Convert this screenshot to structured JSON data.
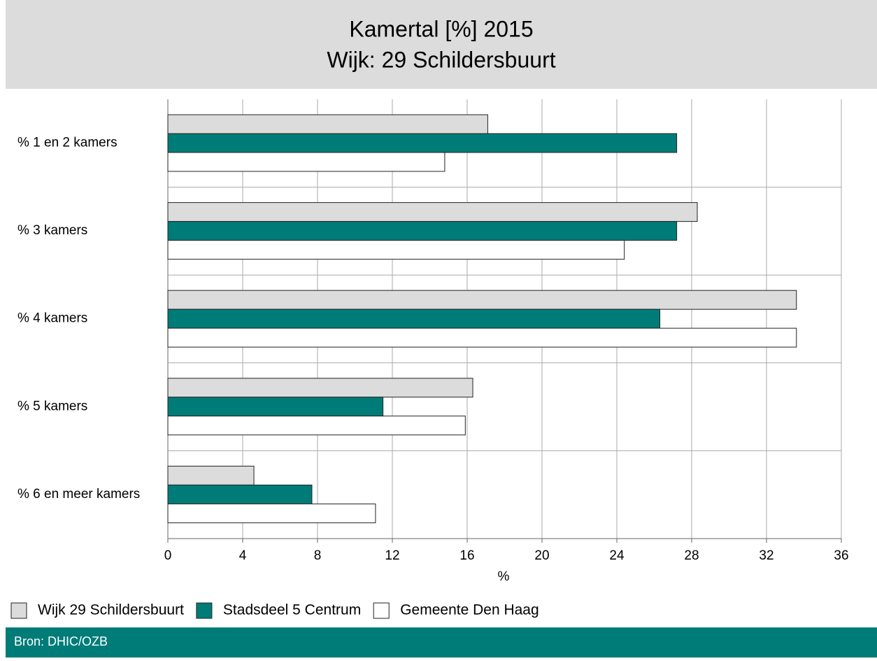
{
  "chart_data": {
    "type": "barh",
    "title": "Kamertal [%] 2015",
    "subtitle": "Wijk: 29 Schildersbuurt",
    "x_label": "%",
    "source": "Bron: DHIC/OZB",
    "categories": [
      "% 1 en 2 kamers",
      "% 3 kamers",
      "% 4 kamers",
      "% 5 kamers",
      "% 6 en meer kamers"
    ],
    "series": [
      {
        "name": "Wijk 29 Schildersbuurt",
        "color": "#dcdcdc",
        "values": [
          17.1,
          28.3,
          33.6,
          16.3,
          4.6
        ]
      },
      {
        "name": "Stadsdeel 5 Centrum",
        "color": "#007c78",
        "values": [
          27.2,
          27.2,
          26.3,
          11.5,
          7.7
        ]
      },
      {
        "name": "Gemeente Den Haag",
        "color": "#ffffff",
        "values": [
          14.8,
          24.4,
          33.6,
          15.9,
          11.1
        ]
      }
    ],
    "xlim": [
      0,
      36
    ],
    "xticks": [
      0,
      4,
      8,
      12,
      16,
      20,
      24,
      28,
      32,
      36
    ],
    "grid": true
  }
}
